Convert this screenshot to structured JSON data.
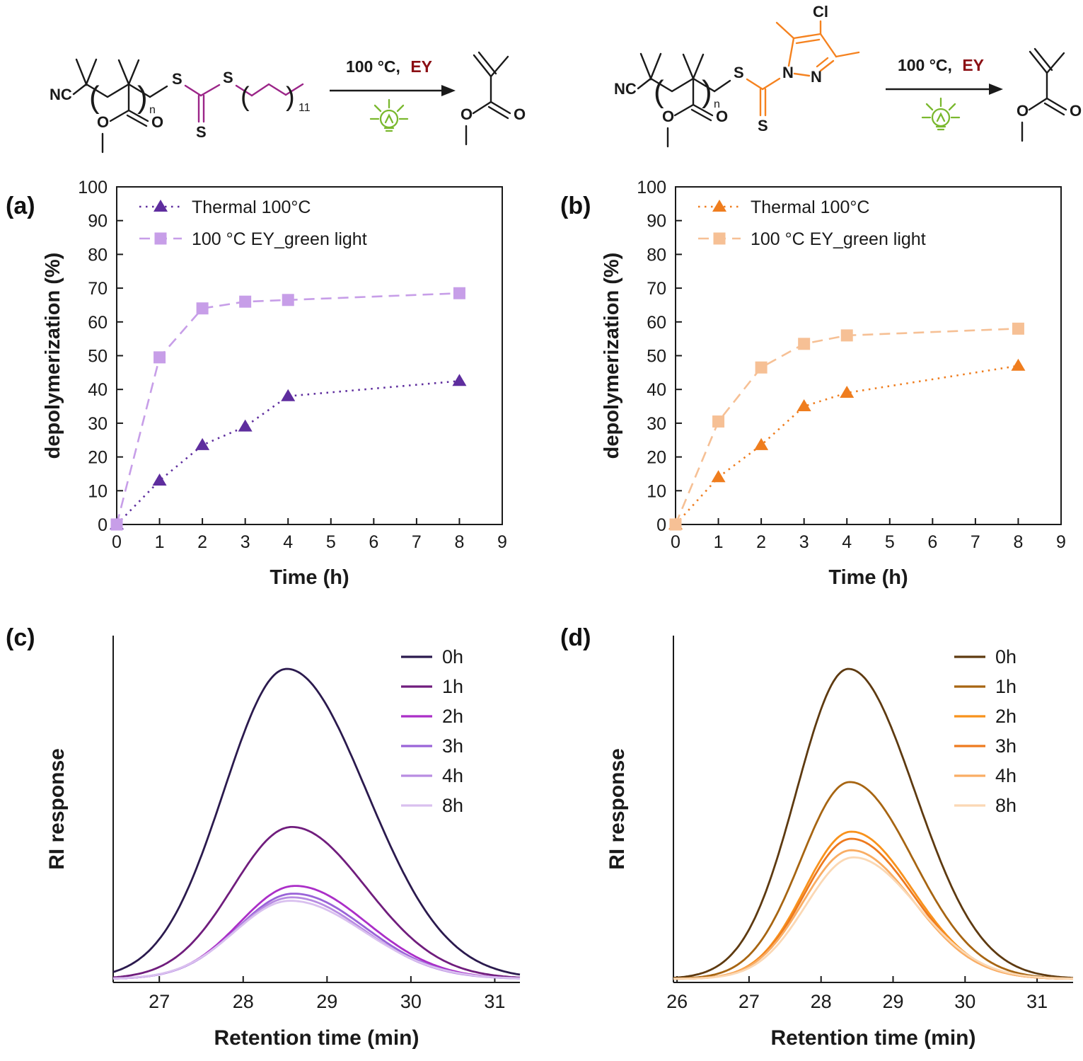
{
  "figure": {
    "background": "#ffffff",
    "panel_labels": {
      "a": "(a)",
      "b": "(b)",
      "c": "(c)",
      "d": "(d)"
    }
  },
  "schemes": {
    "conditions_temp": "100 °C,",
    "conditions_catalyst": "EY",
    "catalyst_color": "#8b0f14",
    "light_color": "#7ab82e",
    "left": {
      "accent": "#9b2588",
      "labels": {
        "nc": "NC",
        "n": "n",
        "s1": "S",
        "s2": "S",
        "s3": "S",
        "o_ester": "O",
        "o_carbonyl": "O",
        "chain_repeat": "11"
      },
      "product": {
        "o_ester": "O",
        "o_carbonyl": "O"
      }
    },
    "right": {
      "accent": "#f5821f",
      "labels": {
        "nc": "NC",
        "n": "n",
        "s1": "S",
        "s2": "S",
        "n1": "N",
        "n2": "N",
        "cl": "Cl",
        "o_ester": "O",
        "o_carbonyl": "O"
      },
      "product": {
        "o_ester": "O",
        "o_carbonyl": "O"
      }
    }
  },
  "chart_data": [
    {
      "id": "chart-a",
      "type": "scatter",
      "panel": "(a)",
      "xlabel": "Time (h)",
      "ylabel": "depolymerization (%)",
      "xlim": [
        0,
        9
      ],
      "ylim": [
        0,
        100
      ],
      "xticks": [
        0,
        1,
        2,
        3,
        4,
        5,
        6,
        7,
        8,
        9
      ],
      "yticks": [
        0,
        10,
        20,
        30,
        40,
        50,
        60,
        70,
        80,
        90,
        100
      ],
      "legend_position": "top-left",
      "series": [
        {
          "name": "Thermal 100°C",
          "marker": "triangle",
          "linestyle": "dotted",
          "color": "#5e2d9e",
          "x": [
            0,
            1,
            2,
            3,
            4,
            8
          ],
          "y": [
            0,
            13,
            23.5,
            29,
            38,
            42.5
          ]
        },
        {
          "name": "100 °C  EY_green light",
          "marker": "square",
          "linestyle": "dashed",
          "color": "#c79ee8",
          "x": [
            0,
            1,
            2,
            3,
            4,
            8
          ],
          "y": [
            0,
            49.5,
            64,
            66,
            66.5,
            68.5
          ]
        }
      ]
    },
    {
      "id": "chart-b",
      "type": "scatter",
      "panel": "(b)",
      "xlabel": "Time (h)",
      "ylabel": "depolymerization (%)",
      "xlim": [
        0,
        9
      ],
      "ylim": [
        0,
        100
      ],
      "xticks": [
        0,
        1,
        2,
        3,
        4,
        5,
        6,
        7,
        8,
        9
      ],
      "yticks": [
        0,
        10,
        20,
        30,
        40,
        50,
        60,
        70,
        80,
        90,
        100
      ],
      "legend_position": "top-left",
      "series": [
        {
          "name": "Thermal 100°C",
          "marker": "triangle",
          "linestyle": "dotted",
          "color": "#ef7d1e",
          "x": [
            0,
            1,
            2,
            3,
            4,
            8
          ],
          "y": [
            0,
            14,
            23.5,
            35,
            39,
            47
          ]
        },
        {
          "name": "100 °C  EY_green light",
          "marker": "square",
          "linestyle": "dashed",
          "color": "#f6c095",
          "x": [
            0,
            1,
            2,
            3,
            4,
            8
          ],
          "y": [
            0,
            30.5,
            46.5,
            53.5,
            56,
            58
          ]
        }
      ]
    },
    {
      "id": "chart-c",
      "type": "gpc",
      "panel": "(c)",
      "xlabel": "Retention time (min)",
      "ylabel": "RI response",
      "xlim": [
        26.45,
        31.3
      ],
      "xticks": [
        27,
        28,
        29,
        30,
        31
      ],
      "legend_position": "top-right",
      "series": [
        {
          "name": "0h",
          "color": "#2b1a4e",
          "height": 1.0,
          "center": 28.52,
          "sigma_left": 0.75,
          "sigma_right": 0.95
        },
        {
          "name": "1h",
          "color": "#701d7d",
          "height": 0.49,
          "center": 28.58,
          "sigma_left": 0.7,
          "sigma_right": 0.88
        },
        {
          "name": "2h",
          "color": "#ab2ec8",
          "height": 0.3,
          "center": 28.62,
          "sigma_left": 0.66,
          "sigma_right": 0.85
        },
        {
          "name": "3h",
          "color": "#9a63d8",
          "height": 0.275,
          "center": 28.6,
          "sigma_left": 0.66,
          "sigma_right": 0.85
        },
        {
          "name": "4h",
          "color": "#b88ce2",
          "height": 0.263,
          "center": 28.58,
          "sigma_left": 0.66,
          "sigma_right": 0.85
        },
        {
          "name": "8h",
          "color": "#d9c0ef",
          "height": 0.252,
          "center": 28.56,
          "sigma_left": 0.66,
          "sigma_right": 0.88
        }
      ]
    },
    {
      "id": "chart-d",
      "type": "gpc",
      "panel": "(d)",
      "xlabel": "Retention time (min)",
      "ylabel": "RI response",
      "xlim": [
        25.95,
        31.5
      ],
      "xticks": [
        26,
        27,
        28,
        29,
        30,
        31
      ],
      "legend_position": "top-right",
      "series": [
        {
          "name": "0h",
          "color": "#5e3a10",
          "height": 1.0,
          "center": 28.38,
          "sigma_left": 0.72,
          "sigma_right": 0.92
        },
        {
          "name": "1h",
          "color": "#a76512",
          "height": 0.635,
          "center": 28.4,
          "sigma_left": 0.68,
          "sigma_right": 0.88
        },
        {
          "name": "2h",
          "color": "#f8921c",
          "height": 0.475,
          "center": 28.42,
          "sigma_left": 0.65,
          "sigma_right": 0.85
        },
        {
          "name": "3h",
          "color": "#ee7a1f",
          "height": 0.452,
          "center": 28.42,
          "sigma_left": 0.65,
          "sigma_right": 0.85
        },
        {
          "name": "4h",
          "color": "#f9ad64",
          "height": 0.415,
          "center": 28.42,
          "sigma_left": 0.66,
          "sigma_right": 0.86
        },
        {
          "name": "8h",
          "color": "#fbd8b4",
          "height": 0.392,
          "center": 28.45,
          "sigma_left": 0.66,
          "sigma_right": 0.88
        }
      ]
    }
  ]
}
